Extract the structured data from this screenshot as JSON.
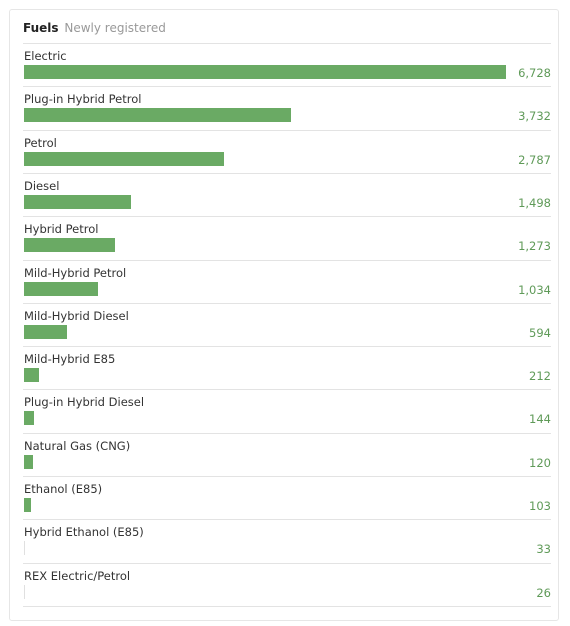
{
  "header": {
    "title": "Fuels",
    "subtitle": "Newly registered"
  },
  "colors": {
    "bar": "#6aaa64",
    "value_text": "#5f9a58"
  },
  "chart_data": {
    "type": "bar",
    "orientation": "horizontal",
    "categories": [
      "Electric",
      "Plug-in Hybrid Petrol",
      "Petrol",
      "Diesel",
      "Hybrid Petrol",
      "Mild-Hybrid Petrol",
      "Mild-Hybrid Diesel",
      "Mild-Hybrid E85",
      "Plug-in Hybrid Diesel",
      "Natural Gas (CNG)",
      "Ethanol (E85)",
      "Hybrid Ethanol (E85)",
      "REX Electric/Petrol"
    ],
    "values": [
      6728,
      3732,
      2787,
      1498,
      1273,
      1034,
      594,
      212,
      144,
      120,
      103,
      33,
      26
    ],
    "value_labels": [
      "6,728",
      "3,732",
      "2,787",
      "1,498",
      "1,273",
      "1,034",
      "594",
      "212",
      "144",
      "120",
      "103",
      "33",
      "26"
    ],
    "xlim": [
      0,
      6728
    ],
    "grid": false,
    "legend": "none"
  }
}
